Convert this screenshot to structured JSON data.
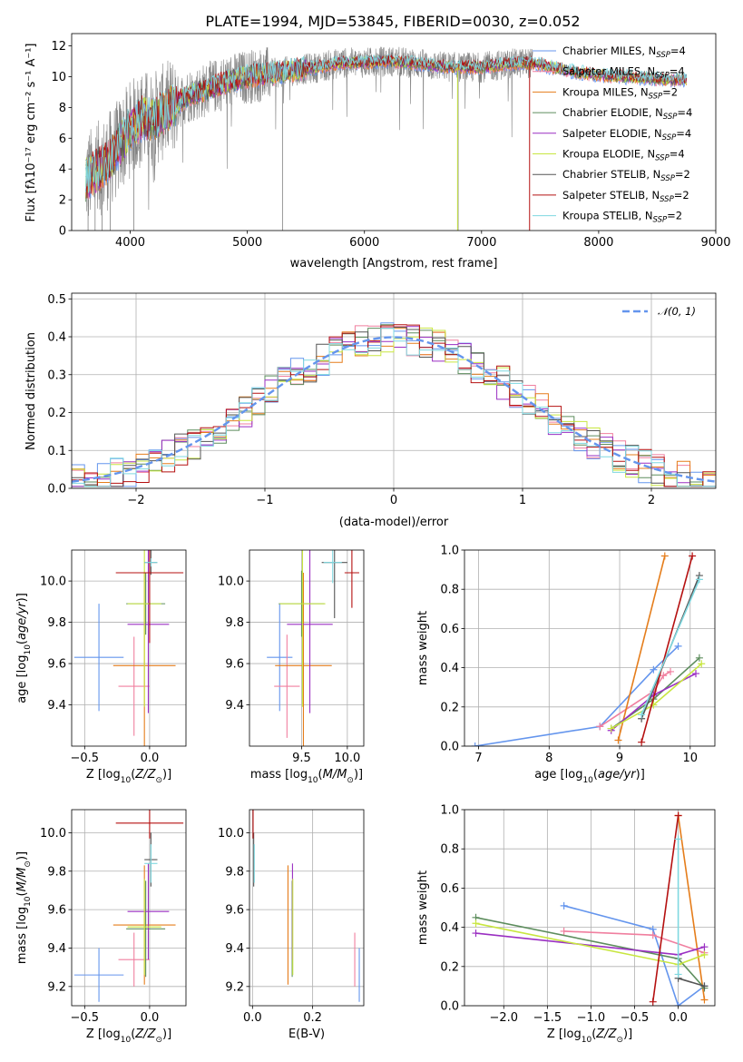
{
  "colors": {
    "Chabrier MILES": "#6495ed",
    "Salpeter MILES": "#f07f9f",
    "Kroupa MILES": "#e57d1b",
    "Chabrier ELODIE": "#5d8d5d",
    "Salpeter ELODIE": "#9a2fc2",
    "Kroupa ELODIE": "#c8e640",
    "Chabrier STELIB": "#555555",
    "Salpeter STELIB": "#b51010",
    "Kroupa STELIB": "#7fd8e0",
    "data": "#808080"
  },
  "chart_data": [
    {
      "type": "line",
      "title": "PLATE=1994, MJD=53845, FIBERID=0030, z=0.052",
      "xlabel": "wavelength [Angstrom, rest frame]",
      "ylabel": "Flux [fλ10⁻¹⁷ erg cm⁻² s⁻¹ A⁻¹]",
      "xlim": [
        3500,
        9000
      ],
      "ylim": [
        0,
        12.8
      ],
      "xticks": [
        4000,
        5000,
        6000,
        7000,
        8000,
        9000
      ],
      "yticks": [
        0,
        2,
        4,
        6,
        8,
        10,
        12
      ],
      "grid": false,
      "legend_position": "top-right",
      "legend": [
        "Chabrier MILES, N_SSP=4",
        "Salpeter MILES, N_SSP=4",
        "Kroupa MILES, N_SSP=2",
        "Chabrier ELODIE, N_SSP=4",
        "Salpeter ELODIE, N_SSP=4",
        "Kroupa ELODIE, N_SSP=4",
        "Chabrier STELIB, N_SSP=2",
        "Salpeter STELIB, N_SSP=2",
        "Kroupa STELIB, N_SSP=2"
      ],
      "legend_display": [
        [
          "Chabrier MILES, N",
          "SSP",
          "=4"
        ],
        [
          "Salpeter MILES, N",
          "SSP",
          "=4"
        ],
        [
          "Kroupa MILES, N",
          "SSP",
          "=2"
        ],
        [
          "Chabrier ELODIE, N",
          "SSP",
          "=4"
        ],
        [
          "Salpeter ELODIE, N",
          "SSP",
          "=4"
        ],
        [
          "Kroupa ELODIE, N",
          "SSP",
          "=4"
        ],
        [
          "Chabrier STELIB, N",
          "SSP",
          "=2"
        ],
        [
          "Salpeter STELIB, N",
          "SSP",
          "=2"
        ],
        [
          "Kroupa STELIB, N",
          "SSP",
          "=2"
        ]
      ],
      "continuum": {
        "x": [
          3620,
          3700,
          3800,
          3900,
          4000,
          4100,
          4200,
          4300,
          4400,
          4500,
          4600,
          4800,
          5000,
          5200,
          5400,
          5600,
          5800,
          6000,
          6200,
          6400,
          6600,
          6800,
          7000,
          7200,
          7400,
          7500,
          7600,
          7800,
          8000,
          8200,
          8400,
          8600,
          8750
        ],
        "y": [
          3.3,
          3.8,
          4.4,
          5.4,
          6.6,
          7.3,
          7.2,
          7.8,
          8.3,
          8.8,
          9.0,
          9.6,
          10.0,
          10.2,
          10.4,
          10.6,
          10.9,
          10.9,
          11.0,
          10.9,
          10.7,
          10.6,
          10.6,
          10.8,
          10.9,
          10.8,
          10.6,
          10.3,
          10.1,
          10.0,
          9.9,
          9.8,
          9.8
        ]
      },
      "data_range": [
        3620,
        7440
      ],
      "model_range": [
        3620,
        8750
      ]
    },
    {
      "type": "bar",
      "xlabel": "(data-model)/error",
      "ylabel": "Normed distribution",
      "xlim": [
        -2.5,
        2.5
      ],
      "ylim": [
        0,
        0.515
      ],
      "xticks": [
        -2,
        -1,
        0,
        1,
        2
      ],
      "yticks": [
        0.0,
        0.1,
        0.2,
        0.3,
        0.4,
        0.5
      ],
      "grid": true,
      "legend_position": "top-right",
      "reference_curve": "N(0,1)",
      "legend": [
        "𝒩(0, 1)"
      ],
      "bin_width": 0.1,
      "n_bins": 50
    },
    {
      "type": "scatter",
      "xlabel": "Z [log10(Z/Z⊙)]",
      "ylabel": "age  [log10(age/yr)]",
      "xlim": [
        -0.6,
        0.28
      ],
      "ylim": [
        9.2,
        10.15
      ],
      "xticks": [
        -0.5,
        0.0
      ],
      "yticks": [
        9.4,
        9.6,
        9.8,
        10.0
      ],
      "grid": true,
      "series": [
        {
          "name": "Chabrier MILES",
          "x": -0.39,
          "xerr": 0.19,
          "y": 9.63,
          "yerr": 0.26
        },
        {
          "name": "Salpeter MILES",
          "x": -0.12,
          "xerr": 0.12,
          "y": 9.49,
          "yerr": 0.24
        },
        {
          "name": "Kroupa MILES",
          "x": -0.04,
          "xerr": 0.24,
          "y": 9.59,
          "yerr": 0.45
        },
        {
          "name": "Chabrier ELODIE",
          "x": -0.03,
          "xerr": 0.15,
          "y": 9.89,
          "yerr": 0.15
        },
        {
          "name": "Salpeter ELODIE",
          "x": -0.01,
          "xerr": 0.16,
          "y": 9.79,
          "yerr": 0.43
        },
        {
          "name": "Kroupa ELODIE",
          "x": -0.04,
          "xerr": 0.13,
          "y": 9.89,
          "yerr": 0.5
        },
        {
          "name": "Chabrier STELIB",
          "x": 0.01,
          "xerr": 0.05,
          "y": 10.09,
          "yerr": 0.06
        },
        {
          "name": "Salpeter STELIB",
          "x": 0.0,
          "xerr": 0.26,
          "y": 10.04,
          "yerr": 0.34
        },
        {
          "name": "Kroupa STELIB",
          "x": 0.01,
          "xerr": 0.05,
          "y": 10.09,
          "yerr": 0.02
        }
      ]
    },
    {
      "type": "scatter",
      "xlabel": "mass [log10(M/M⊙)]",
      "ylabel": "",
      "xlim": [
        8.93,
        10.18
      ],
      "ylim": [
        9.2,
        10.15
      ],
      "xticks": [
        9.5,
        10.0
      ],
      "yticks": [
        9.4,
        9.6,
        9.8,
        10.0
      ],
      "grid": true,
      "series": [
        {
          "name": "Chabrier MILES",
          "x": 9.26,
          "xerr": 0.14,
          "y": 9.63,
          "yerr": 0.26
        },
        {
          "name": "Salpeter MILES",
          "x": 9.34,
          "xerr": 0.14,
          "y": 9.49,
          "yerr": 0.25
        },
        {
          "name": "Kroupa MILES",
          "x": 9.52,
          "xerr": 0.31,
          "y": 9.59,
          "yerr": 0.45
        },
        {
          "name": "Chabrier ELODIE",
          "x": 9.5,
          "xerr": 0.25,
          "y": 9.89,
          "yerr": 0.16
        },
        {
          "name": "Salpeter ELODIE",
          "x": 9.59,
          "xerr": 0.25,
          "y": 9.79,
          "yerr": 0.43
        },
        {
          "name": "Kroupa ELODIE",
          "x": 9.51,
          "xerr": 0.25,
          "y": 9.89,
          "yerr": 0.5
        },
        {
          "name": "Chabrier STELIB",
          "x": 9.86,
          "xerr": 0.14,
          "y": 10.09,
          "yerr": 0.27
        },
        {
          "name": "Salpeter STELIB",
          "x": 10.05,
          "xerr": 0.08,
          "y": 10.04,
          "yerr": 0.17
        },
        {
          "name": "Kroupa STELIB",
          "x": 9.84,
          "xerr": 0.1,
          "y": 10.09,
          "yerr": 0.1
        }
      ]
    },
    {
      "type": "line",
      "xlabel": "age  [log10(age/yr)]",
      "ylabel": "mass weight",
      "xlim": [
        6.8,
        10.35
      ],
      "ylim": [
        0,
        1.0
      ],
      "xticks": [
        7,
        8,
        9,
        10
      ],
      "yticks": [
        0.0,
        0.2,
        0.4,
        0.6,
        0.8,
        1.0
      ],
      "grid": true,
      "series": [
        {
          "name": "Chabrier MILES",
          "x": [
            6.95,
            8.72,
            9.48,
            9.83
          ],
          "y": [
            0.0,
            0.1,
            0.39,
            0.51
          ]
        },
        {
          "name": "Salpeter MILES",
          "x": [
            8.72,
            9.48,
            9.62,
            9.72
          ],
          "y": [
            0.1,
            0.28,
            0.36,
            0.38
          ]
        },
        {
          "name": "Kroupa MILES",
          "x": [
            8.98,
            9.64
          ],
          "y": [
            0.03,
            0.97
          ]
        },
        {
          "name": "Chabrier ELODIE",
          "x": [
            8.88,
            9.48,
            10.13
          ],
          "y": [
            0.09,
            0.24,
            0.45
          ]
        },
        {
          "name": "Salpeter ELODIE",
          "x": [
            8.88,
            9.48,
            10.08
          ],
          "y": [
            0.08,
            0.26,
            0.37
          ]
        },
        {
          "name": "Kroupa ELODIE",
          "x": [
            8.88,
            9.48,
            10.16
          ],
          "y": [
            0.09,
            0.21,
            0.42
          ]
        },
        {
          "name": "Chabrier STELIB",
          "x": [
            9.31,
            10.13
          ],
          "y": [
            0.14,
            0.87
          ]
        },
        {
          "name": "Salpeter STELIB",
          "x": [
            9.31,
            10.03
          ],
          "y": [
            0.02,
            0.97
          ]
        },
        {
          "name": "Kroupa STELIB",
          "x": [
            9.31,
            10.13
          ],
          "y": [
            0.16,
            0.85
          ]
        }
      ]
    },
    {
      "type": "scatter",
      "xlabel": "Z [log10(Z/Z⊙)]",
      "ylabel": "mass [log10(M/M⊙)]",
      "xlim": [
        -0.6,
        0.28
      ],
      "ylim": [
        9.1,
        10.12
      ],
      "xticks": [
        -0.5,
        0.0
      ],
      "yticks": [
        9.2,
        9.4,
        9.6,
        9.8,
        10.0
      ],
      "grid": true,
      "series": [
        {
          "name": "Chabrier MILES",
          "x": -0.39,
          "xerr": 0.19,
          "y": 9.26,
          "yerr": 0.14
        },
        {
          "name": "Salpeter MILES",
          "x": -0.12,
          "xerr": 0.12,
          "y": 9.34,
          "yerr": 0.14
        },
        {
          "name": "Kroupa MILES",
          "x": -0.04,
          "xerr": 0.24,
          "y": 9.52,
          "yerr": 0.31
        },
        {
          "name": "Chabrier ELODIE",
          "x": -0.03,
          "xerr": 0.15,
          "y": 9.5,
          "yerr": 0.25
        },
        {
          "name": "Salpeter ELODIE",
          "x": -0.01,
          "xerr": 0.16,
          "y": 9.59,
          "yerr": 0.25
        },
        {
          "name": "Kroupa ELODIE",
          "x": -0.04,
          "xerr": 0.13,
          "y": 9.51,
          "yerr": 0.25
        },
        {
          "name": "Chabrier STELIB",
          "x": 0.01,
          "xerr": 0.05,
          "y": 9.86,
          "yerr": 0.14
        },
        {
          "name": "Salpeter STELIB",
          "x": 0.0,
          "xerr": 0.26,
          "y": 10.05,
          "yerr": 0.08
        },
        {
          "name": "Kroupa STELIB",
          "x": 0.01,
          "xerr": 0.05,
          "y": 9.84,
          "yerr": 0.1
        }
      ]
    },
    {
      "type": "scatter",
      "xlabel": "E(B-V)",
      "ylabel": "",
      "xlim": [
        -0.01,
        0.37
      ],
      "ylim": [
        9.1,
        10.12
      ],
      "xticks": [
        0.0,
        0.2
      ],
      "yticks": [
        9.2,
        9.4,
        9.6,
        9.8,
        10.0
      ],
      "grid": true,
      "series": [
        {
          "name": "Chabrier MILES",
          "x": 0.355,
          "y": 9.26,
          "yerr": 0.14
        },
        {
          "name": "Salpeter MILES",
          "x": 0.34,
          "y": 9.34,
          "yerr": 0.14
        },
        {
          "name": "Kroupa MILES",
          "x": 0.118,
          "y": 9.52,
          "yerr": 0.31
        },
        {
          "name": "Chabrier ELODIE",
          "x": 0.132,
          "y": 9.5,
          "yerr": 0.25
        },
        {
          "name": "Salpeter ELODIE",
          "x": 0.133,
          "y": 9.59,
          "yerr": 0.25
        },
        {
          "name": "Kroupa ELODIE",
          "x": 0.134,
          "y": 9.51,
          "yerr": 0.25
        },
        {
          "name": "Chabrier STELIB",
          "x": 0.004,
          "y": 9.86,
          "yerr": 0.14
        },
        {
          "name": "Salpeter STELIB",
          "x": 0.002,
          "y": 10.05,
          "yerr": 0.08
        },
        {
          "name": "Kroupa STELIB",
          "x": 0.006,
          "y": 9.84,
          "yerr": 0.1
        }
      ]
    },
    {
      "type": "line",
      "xlabel": "Z [log10(Z/Z⊙)]",
      "ylabel": "mass weight",
      "xlim": [
        -2.45,
        0.42
      ],
      "ylim": [
        0,
        1.0
      ],
      "xticks": [
        -2.0,
        -1.5,
        -1.0,
        -0.5,
        0.0
      ],
      "yticks": [
        0.0,
        0.2,
        0.4,
        0.6,
        0.8,
        1.0
      ],
      "grid": true,
      "series": [
        {
          "name": "Chabrier MILES",
          "x": [
            -1.31,
            -0.29,
            0.0,
            0.3
          ],
          "y": [
            0.51,
            0.39,
            0.0,
            0.1
          ]
        },
        {
          "name": "Salpeter MILES",
          "x": [
            -1.31,
            -0.29,
            0.3
          ],
          "y": [
            0.38,
            0.36,
            0.27
          ]
        },
        {
          "name": "Kroupa MILES",
          "x": [
            0.0,
            0.3
          ],
          "y": [
            0.97,
            0.03
          ]
        },
        {
          "name": "Chabrier ELODIE",
          "x": [
            -2.32,
            0.0,
            0.3
          ],
          "y": [
            0.45,
            0.24,
            0.09
          ]
        },
        {
          "name": "Salpeter ELODIE",
          "x": [
            -2.32,
            0.0,
            0.3
          ],
          "y": [
            0.37,
            0.26,
            0.3
          ]
        },
        {
          "name": "Kroupa ELODIE",
          "x": [
            -2.32,
            0.0,
            0.3
          ],
          "y": [
            0.42,
            0.21,
            0.26
          ]
        },
        {
          "name": "Chabrier STELIB",
          "x": [
            0.0,
            0.3
          ],
          "y": [
            0.14,
            0.1
          ]
        },
        {
          "name": "Salpeter STELIB",
          "x": [
            -0.29,
            0.0
          ],
          "y": [
            0.02,
            0.97
          ]
        },
        {
          "name": "Kroupa STELIB",
          "x": [
            0.0,
            0.0
          ],
          "y": [
            0.16,
            0.85
          ]
        }
      ]
    }
  ]
}
